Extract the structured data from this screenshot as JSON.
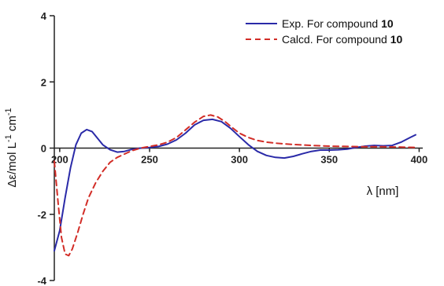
{
  "chart_data": {
    "type": "line",
    "xlabel": "λ [nm]",
    "ylabel_prefix": "Δε/mol L",
    "ylabel_sup1": "-1",
    "ylabel_mid": " cm",
    "ylabel_sup2": "-1",
    "xlim": [
      197,
      402
    ],
    "ylim": [
      -4,
      4
    ],
    "x_ticks": [
      {
        "value": 200,
        "label": "200"
      },
      {
        "value": 250,
        "label": "250"
      },
      {
        "value": 300,
        "label": "300"
      },
      {
        "value": 350,
        "label": "350"
      },
      {
        "value": 400,
        "label": "400"
      }
    ],
    "y_ticks": [
      {
        "value": 4,
        "label": "4"
      },
      {
        "value": 2,
        "label": "2"
      },
      {
        "value": 0,
        "label": "0"
      },
      {
        "value": -2,
        "label": "-2"
      },
      {
        "value": -4,
        "label": "-4"
      }
    ],
    "zero_line": true,
    "grid": false,
    "legend_position": "top-right",
    "series": [
      {
        "name": "Exp. For compound 10",
        "label_text": "Exp. For compound ",
        "label_bold": "10",
        "color": "#2a2aa8",
        "dash": "solid",
        "points": [
          [
            197,
            -3.1
          ],
          [
            200,
            -2.5
          ],
          [
            203,
            -1.5
          ],
          [
            206,
            -0.6
          ],
          [
            209,
            0.1
          ],
          [
            212,
            0.45
          ],
          [
            215,
            0.56
          ],
          [
            218,
            0.5
          ],
          [
            221,
            0.3
          ],
          [
            224,
            0.1
          ],
          [
            228,
            -0.05
          ],
          [
            232,
            -0.12
          ],
          [
            236,
            -0.1
          ],
          [
            240,
            -0.04
          ],
          [
            245,
            0.0
          ],
          [
            250,
            0.02
          ],
          [
            255,
            0.05
          ],
          [
            260,
            0.12
          ],
          [
            265,
            0.25
          ],
          [
            270,
            0.45
          ],
          [
            275,
            0.7
          ],
          [
            280,
            0.84
          ],
          [
            285,
            0.87
          ],
          [
            290,
            0.8
          ],
          [
            295,
            0.6
          ],
          [
            300,
            0.35
          ],
          [
            305,
            0.1
          ],
          [
            310,
            -0.1
          ],
          [
            315,
            -0.22
          ],
          [
            320,
            -0.28
          ],
          [
            325,
            -0.3
          ],
          [
            330,
            -0.25
          ],
          [
            335,
            -0.17
          ],
          [
            340,
            -0.1
          ],
          [
            345,
            -0.06
          ],
          [
            350,
            -0.06
          ],
          [
            355,
            -0.05
          ],
          [
            360,
            -0.03
          ],
          [
            365,
            0.02
          ],
          [
            370,
            0.06
          ],
          [
            375,
            0.08
          ],
          [
            380,
            0.07
          ],
          [
            385,
            0.08
          ],
          [
            390,
            0.18
          ],
          [
            395,
            0.32
          ],
          [
            398,
            0.4
          ]
        ]
      },
      {
        "name": "Calcd. For compound 10",
        "label_text": "Calcd. For compound ",
        "label_bold": "10",
        "color": "#d22d27",
        "dash": "dashed",
        "points": [
          [
            197,
            -0.4
          ],
          [
            199,
            -1.6
          ],
          [
            201,
            -2.7
          ],
          [
            203,
            -3.2
          ],
          [
            205,
            -3.25
          ],
          [
            207,
            -3.05
          ],
          [
            210,
            -2.55
          ],
          [
            213,
            -2.0
          ],
          [
            216,
            -1.5
          ],
          [
            220,
            -1.05
          ],
          [
            224,
            -0.7
          ],
          [
            228,
            -0.43
          ],
          [
            232,
            -0.28
          ],
          [
            236,
            -0.18
          ],
          [
            240,
            -0.08
          ],
          [
            245,
            0.0
          ],
          [
            250,
            0.05
          ],
          [
            255,
            0.1
          ],
          [
            260,
            0.18
          ],
          [
            265,
            0.32
          ],
          [
            270,
            0.55
          ],
          [
            275,
            0.78
          ],
          [
            280,
            0.96
          ],
          [
            284,
            1.0
          ],
          [
            288,
            0.94
          ],
          [
            292,
            0.8
          ],
          [
            296,
            0.62
          ],
          [
            300,
            0.45
          ],
          [
            305,
            0.32
          ],
          [
            310,
            0.23
          ],
          [
            315,
            0.18
          ],
          [
            320,
            0.15
          ],
          [
            330,
            0.11
          ],
          [
            340,
            0.08
          ],
          [
            350,
            0.06
          ],
          [
            360,
            0.05
          ],
          [
            370,
            0.04
          ],
          [
            380,
            0.04
          ],
          [
            390,
            0.03
          ],
          [
            398,
            0.02
          ]
        ]
      }
    ]
  }
}
